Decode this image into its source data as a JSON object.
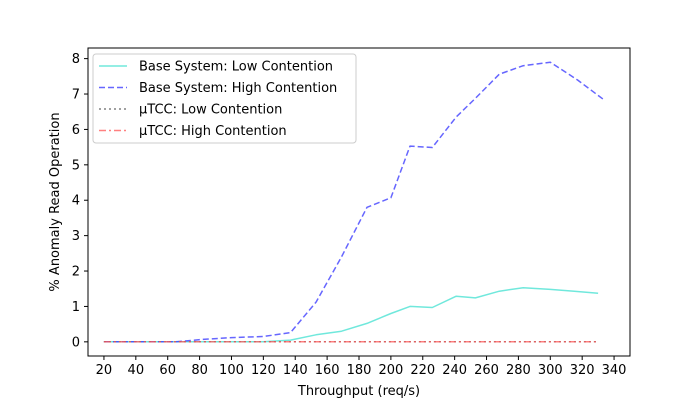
{
  "chart_data": {
    "type": "line",
    "xlabel": "Throughput (req/s)",
    "ylabel": "% Anomaly Read Operation",
    "xlim": [
      10,
      350
    ],
    "ylim": [
      -0.4,
      8.3
    ],
    "xticks": [
      20,
      40,
      60,
      80,
      100,
      120,
      140,
      160,
      180,
      200,
      220,
      240,
      260,
      280,
      300,
      320,
      340
    ],
    "yticks": [
      0,
      1,
      2,
      3,
      4,
      5,
      6,
      7,
      8
    ],
    "grid": false,
    "legend_position": "upper-left",
    "series": [
      {
        "name": "Base System: Low Contention",
        "color": "#40E0D0",
        "style": "solid",
        "x": [
          20,
          35,
          50,
          65,
          82,
          100,
          120,
          137,
          153,
          169,
          185,
          200,
          212,
          226,
          241,
          253,
          268,
          283,
          300,
          315,
          330
        ],
        "y": [
          0,
          0,
          0,
          0,
          0,
          0,
          0,
          0.05,
          0.2,
          0.3,
          0.52,
          0.8,
          1.0,
          0.97,
          1.29,
          1.24,
          1.43,
          1.53,
          1.48,
          1.43,
          1.37
        ]
      },
      {
        "name": "Base System: High Contention",
        "color": "#3333FF",
        "style": "dashed",
        "x": [
          20,
          35,
          50,
          65,
          82,
          100,
          120,
          137,
          153,
          169,
          185,
          200,
          212,
          226,
          241,
          253,
          268,
          283,
          300,
          317,
          333
        ],
        "y": [
          0,
          0,
          0,
          0,
          0.07,
          0.12,
          0.15,
          0.26,
          1.12,
          2.4,
          3.8,
          4.07,
          5.53,
          5.49,
          6.35,
          6.88,
          7.56,
          7.8,
          7.9,
          7.4,
          6.86
        ]
      },
      {
        "name": "µTCC: Low Contention",
        "color": "#555555",
        "style": "dotted",
        "x": [
          20,
          330
        ],
        "y": [
          0,
          0
        ]
      },
      {
        "name": "µTCC: High Contention",
        "color": "#FF5555",
        "style": "dashdot",
        "x": [
          20,
          330
        ],
        "y": [
          0,
          0
        ]
      }
    ]
  }
}
